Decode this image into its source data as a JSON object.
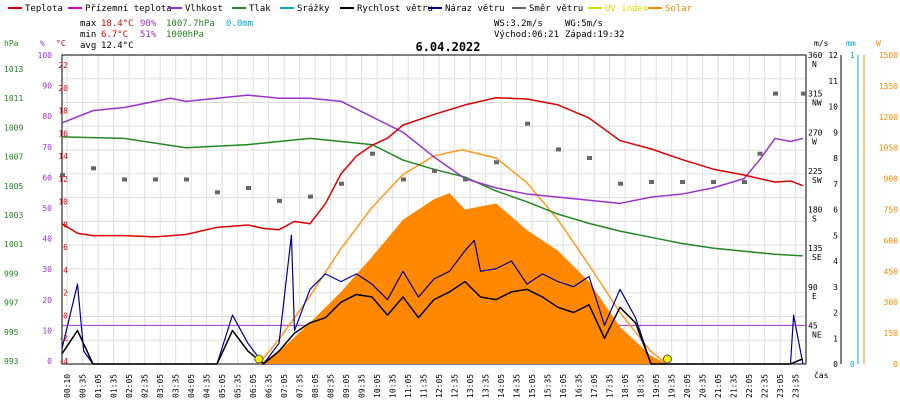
{
  "chart_data": {
    "type": "line",
    "title": "6.04.2022",
    "legend": [
      {
        "label": "Teplota",
        "color": "#dd0000"
      },
      {
        "label": "Přízemní teplota",
        "color": "#cc00cc"
      },
      {
        "label": "Vlhkost",
        "color": "#9933cc"
      },
      {
        "label": "Tlak",
        "color": "#228822"
      },
      {
        "label": "Srážky",
        "color": "#00aacc"
      },
      {
        "label": "Rychlost větru",
        "color": "#000000"
      },
      {
        "label": "Náraz větru",
        "color": "#000099"
      },
      {
        "label": "Směr větru",
        "color": "#666666"
      },
      {
        "label": "UV index",
        "color": "#dddd00"
      },
      {
        "label": "Solar",
        "color": "#ff8800"
      }
    ],
    "stats": {
      "max_label": "max",
      "max_temp": "18.4°C",
      "max_hum": "90%",
      "max_press": "1007.7hPa",
      "max_rain": "0.0mm",
      "min_label": "min",
      "min_temp": "6.7°C",
      "min_hum": "51%",
      "min_press": "1000hPa",
      "avg_label": "avg",
      "avg_temp": "12.4°C",
      "ws": "WS:3.2m/s",
      "wg": "WG:5m/s",
      "sunrise": "Východ:06:21",
      "sunset": "Západ:19:32"
    },
    "axes_left": {
      "hpa_unit": "hPa",
      "hpa_ticks": [
        "1013",
        "1011",
        "1009",
        "1007",
        "1005",
        "1003",
        "1001",
        "999",
        "997",
        "995",
        "993"
      ],
      "pct_unit": "%",
      "pct_ticks": [
        "100",
        "90",
        "80",
        "70",
        "60",
        "50",
        "40",
        "30",
        "20",
        "10",
        "0"
      ],
      "c_unit": "°C",
      "c_ticks": [
        "22",
        "20",
        "18",
        "16",
        "14",
        "12",
        "10",
        "8",
        "6",
        "4",
        "2",
        "0",
        "-2",
        "-4"
      ]
    },
    "axes_right": {
      "deg_ticks": [
        "360",
        "315",
        "270",
        "225",
        "180",
        "135",
        "90",
        "45"
      ],
      "deg_dirs": [
        "N",
        "NW",
        "W",
        "SW",
        "S",
        "SE",
        "E",
        "NE"
      ],
      "ms_unit": "m/s",
      "ms_ticks": [
        "12",
        "11",
        "10",
        "9",
        "8",
        "7",
        "6",
        "5",
        "4",
        "3",
        "2",
        "1",
        "0"
      ],
      "mm_unit": "mm",
      "mm_ticks": [
        "1",
        "0"
      ],
      "w_unit": "W",
      "w_ticks": [
        "1500",
        "1350",
        "1200",
        "1050",
        "900",
        "750",
        "600",
        "450",
        "300",
        "150",
        "0"
      ]
    },
    "x_label": "čas",
    "x_ticks": [
      "00:10",
      "00:35",
      "01:05",
      "01:35",
      "02:05",
      "02:35",
      "03:05",
      "03:35",
      "04:05",
      "04:35",
      "05:05",
      "05:35",
      "06:05",
      "06:35",
      "07:05",
      "07:35",
      "08:05",
      "08:35",
      "09:05",
      "09:35",
      "10:05",
      "10:35",
      "11:05",
      "11:35",
      "12:05",
      "12:35",
      "13:05",
      "13:35",
      "14:05",
      "14:35",
      "15:05",
      "15:35",
      "16:05",
      "16:35",
      "17:05",
      "17:35",
      "18:05",
      "18:35",
      "19:05",
      "19:35",
      "20:05",
      "20:35",
      "21:05",
      "21:35",
      "22:05",
      "22:35",
      "23:05",
      "23:35"
    ],
    "x_range_hours": [
      0,
      24
    ],
    "series": {
      "temperature": {
        "x": [
          0,
          0.5,
          1,
          2,
          3,
          4,
          5,
          6,
          6.5,
          7,
          7.5,
          8,
          8.5,
          9,
          9.5,
          10,
          10.5,
          11,
          12,
          13,
          14,
          15,
          16,
          17,
          18,
          19,
          20,
          21,
          22,
          22.5,
          23,
          23.5,
          23.9
        ],
        "y": [
          7.8,
          7,
          6.8,
          6.8,
          6.7,
          6.9,
          7.5,
          7.7,
          7.4,
          7.3,
          8,
          7.8,
          9.5,
          12,
          13.5,
          14.4,
          15,
          16.1,
          17,
          17.8,
          18.4,
          18.3,
          17.8,
          16.7,
          14.8,
          14.1,
          13.2,
          12.4,
          11.9,
          11.6,
          11.3,
          11.4,
          11
        ]
      },
      "humidity": {
        "x": [
          0,
          1,
          2,
          3,
          3.5,
          4,
          5,
          6,
          7,
          8,
          9,
          10,
          11,
          12,
          13,
          14,
          15,
          16,
          17,
          18,
          19,
          20,
          21,
          22,
          22.5,
          23,
          23.5,
          23.9
        ],
        "y": [
          78,
          82,
          83,
          85,
          86,
          85,
          86,
          87,
          86,
          86,
          85,
          80,
          75,
          67,
          60,
          57,
          55,
          54,
          53,
          52,
          54,
          55,
          57,
          60,
          66,
          73,
          72,
          73
        ]
      },
      "pressure": {
        "x": [
          0,
          2,
          4,
          6,
          8,
          10,
          11,
          12,
          13,
          14,
          15,
          16,
          17,
          18,
          19,
          20,
          21,
          22,
          23,
          23.9
        ],
        "y": [
          1007.7,
          1007.6,
          1007,
          1007.2,
          1007.6,
          1007.2,
          1006.2,
          1005.6,
          1005.1,
          1004.2,
          1003.5,
          1002.7,
          1002.1,
          1001.6,
          1001.2,
          1000.8,
          1000.5,
          1000.3,
          1000.1,
          1000
        ]
      },
      "wind_speed": {
        "x": [
          0,
          0.5,
          1,
          5,
          5.5,
          6,
          6.5,
          7,
          7.5,
          8,
          8.5,
          9,
          9.5,
          10,
          10.5,
          11,
          11.5,
          12,
          12.5,
          13,
          13.5,
          14,
          14.5,
          15,
          15.5,
          16,
          16.5,
          17,
          17.5,
          18,
          18.5,
          19,
          23.5,
          23.9
        ],
        "y": [
          0.4,
          1.3,
          0,
          0,
          1.3,
          0.5,
          0,
          0.5,
          1.2,
          1.6,
          1.8,
          2.4,
          2.7,
          2.6,
          1.9,
          2.6,
          1.8,
          2.5,
          2.8,
          3.2,
          2.6,
          2.5,
          2.8,
          2.9,
          2.6,
          2.2,
          2,
          2.3,
          1,
          2.2,
          1.6,
          0,
          0,
          0.2
        ]
      },
      "wind_gust": {
        "x": [
          0,
          0.5,
          0.7,
          1,
          5,
          5.5,
          6,
          6.5,
          7,
          7.4,
          7.5,
          8,
          8.5,
          9,
          9.5,
          10,
          10.5,
          11,
          11.5,
          12,
          12.5,
          13,
          13.3,
          13.5,
          14,
          14.5,
          15,
          15.5,
          16,
          16.5,
          17,
          17.5,
          18,
          18.5,
          19,
          23.5,
          23.6,
          23.9
        ],
        "y": [
          0.6,
          3.1,
          0.5,
          0,
          0,
          1.9,
          0.8,
          0,
          0.8,
          5,
          1.3,
          2.9,
          3.5,
          3.2,
          3.5,
          3.1,
          2.5,
          3.6,
          2.6,
          3.3,
          3.6,
          4.4,
          4.8,
          3.6,
          3.7,
          4,
          3.1,
          3.5,
          3.2,
          3,
          3.4,
          1.5,
          2.9,
          1.8,
          0,
          0,
          1.9,
          0
        ]
      },
      "solar": {
        "x": [
          6.35,
          7,
          8,
          9,
          10,
          11,
          12,
          12.5,
          13,
          14,
          15,
          16,
          17,
          18,
          19,
          19.53
        ],
        "y": [
          0,
          60,
          200,
          350,
          520,
          700,
          800,
          830,
          750,
          780,
          650,
          550,
          400,
          180,
          40,
          0
        ]
      },
      "solar_envelope": {
        "x": [
          6.35,
          7,
          8,
          9,
          10,
          11,
          12,
          12.9,
          14,
          15,
          16,
          17,
          18,
          19,
          19.53
        ],
        "y": [
          0,
          120,
          330,
          560,
          760,
          920,
          1010,
          1040,
          1000,
          880,
          700,
          480,
          250,
          60,
          0
        ]
      },
      "wind_direction": {
        "x": [
          0,
          1,
          2,
          3,
          4,
          5,
          6,
          7,
          8,
          9,
          10,
          11,
          12,
          13,
          14,
          15,
          16,
          17,
          18,
          19,
          20,
          21,
          22,
          22.5,
          23,
          23.9
        ],
        "y": [
          220,
          228,
          215,
          215,
          215,
          200,
          205,
          190,
          195,
          210,
          245,
          215,
          225,
          215,
          235,
          280,
          250,
          240,
          210,
          212,
          212,
          212,
          212,
          245,
          315,
          315
        ]
      }
    },
    "sun_markers_hours": [
      6.35,
      19.53
    ]
  }
}
